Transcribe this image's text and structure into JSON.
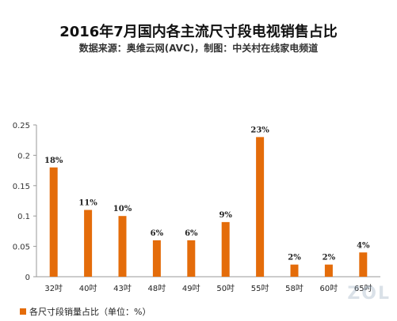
{
  "chart_data": {
    "type": "bar",
    "title": "2016年7月国内各主流尺寸段电视销售占比",
    "subtitle": "数据来源：奥维云网(AVC)，制图：中关村在线家电频道",
    "categories": [
      "32吋",
      "40吋",
      "43吋",
      "48吋",
      "49吋",
      "50吋",
      "55吋",
      "58吋",
      "60吋",
      "65吋"
    ],
    "series": [
      {
        "name": "各尺寸段销量占比（单位：%）",
        "values": [
          0.18,
          0.11,
          0.1,
          0.06,
          0.06,
          0.09,
          0.23,
          0.02,
          0.02,
          0.04
        ],
        "labels": [
          "18%",
          "11%",
          "10%",
          "6%",
          "6%",
          "9%",
          "23%",
          "2%",
          "2%",
          "4%"
        ]
      }
    ],
    "yticks": [
      "0",
      "0.05",
      "0.1",
      "0.15",
      "0.2",
      "0.25"
    ],
    "ylim": [
      0,
      0.25
    ],
    "grid": false,
    "legend_position": "bottom-left",
    "bar_color": "#E46C0A"
  }
}
